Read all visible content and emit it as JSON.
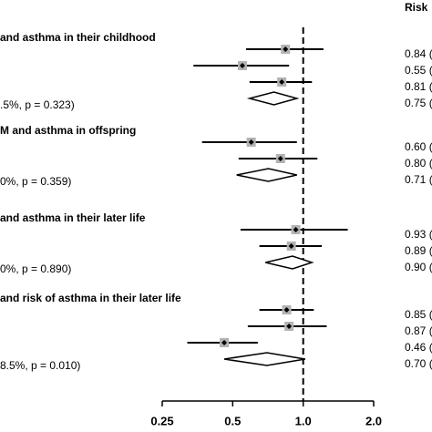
{
  "chart_data": {
    "type": "forest",
    "header": "Risk",
    "xscale": "log",
    "xlim": [
      0.25,
      2
    ],
    "xticks": [
      0.25,
      0.5,
      {
        "value": 1,
        "label": "1.0"
      },
      {
        "value": 2,
        "label": "2.0"
      }
    ],
    "reference": 1,
    "marker_color": "#b3b3b3",
    "groups": [
      {
        "title": "and asthma in their childhood",
        "values": [
          0.84,
          0.55,
          0.81
        ],
        "lower": [
          0.57,
          0.34,
          0.59
        ],
        "upper": [
          1.22,
          0.87,
          1.09
        ],
        "value_labels": [
          "0.84 (",
          "0.55 (",
          "0.81 ("
        ],
        "summary": {
          "value": 0.75,
          "lower": 0.59,
          "upper": 0.94,
          "value_label": "0.75 (",
          "heterogeneity": ".5%, p = 0.323)"
        }
      },
      {
        "title": "M and asthma in offspring",
        "values": [
          0.6,
          0.8
        ],
        "lower": [
          0.37,
          0.53
        ],
        "upper": [
          0.94,
          1.15
        ],
        "value_labels": [
          "0.60 (",
          "0.80 ("
        ],
        "summary": {
          "value": 0.71,
          "lower": 0.52,
          "upper": 0.94,
          "value_label": "0.71 (",
          "heterogeneity": "0%, p = 0.359)"
        }
      },
      {
        "title": "and asthma in their later life",
        "values": [
          0.93,
          0.89
        ],
        "lower": [
          0.54,
          0.65
        ],
        "upper": [
          1.55,
          1.2
        ],
        "value_labels": [
          "0.93 (",
          "0.89 ("
        ],
        "summary": {
          "value": 0.9,
          "lower": 0.69,
          "upper": 1.09,
          "value_label": "0.90 (",
          "heterogeneity": "0%, p = 0.890)"
        }
      },
      {
        "title": "and risk of asthma in their later life",
        "values": [
          0.85,
          0.87,
          0.46
        ],
        "lower": [
          0.65,
          0.58,
          0.32
        ],
        "upper": [
          1.11,
          1.26,
          0.64
        ],
        "value_labels": [
          "0.85 (",
          "0.87 (",
          "0.46 ("
        ],
        "summary": {
          "value": 0.7,
          "lower": 0.46,
          "upper": 1.02,
          "value_label": "0.70 (",
          "heterogeneity": "8.5%, p = 0.010)"
        }
      }
    ]
  }
}
